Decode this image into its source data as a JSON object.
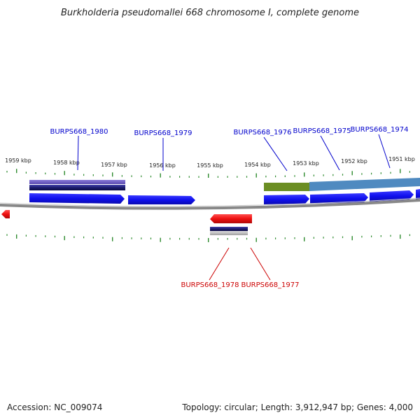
{
  "title": "Burkholderia pseudomallei 668 chromosome I, complete genome",
  "footer": {
    "accession": "Accession: NC_009074",
    "summary": "Topology: circular; Length: 3,912,947 bp; Genes: 4,000"
  },
  "ticks": [
    "1959 kbp",
    "1958 kbp",
    "1957 kbp",
    "1956 kbp",
    "1955 kbp",
    "1954 kbp",
    "1953 kbp",
    "1952 kbp",
    "1951 kbp"
  ],
  "genes_top": [
    "BURPS668_1980",
    "BURPS668_1979",
    "BURPS668_1976",
    "BURPS668_1975",
    "BURPS668_1974"
  ],
  "genes_bottom": [
    "BURPS668_1978",
    "BURPS668_1977"
  ],
  "colors": {
    "forward_gene": "#1a1aff",
    "reverse_gene": "#ff1a1a",
    "tick": "#2e8b2e",
    "backbone": "#888888",
    "top_label": "#0000cc",
    "bottom_label": "#cc0000",
    "olive_feature": "#6b8e23",
    "steelblue_feature": "#4682b4",
    "navy_feature": "#1b1b6e"
  }
}
